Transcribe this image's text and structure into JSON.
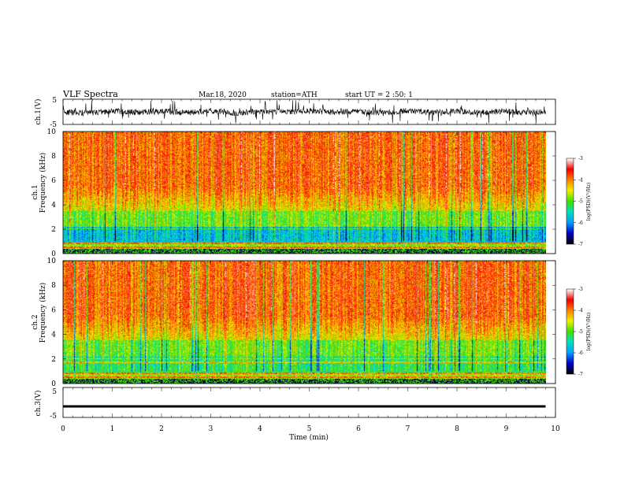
{
  "header": {
    "title": "VLF  Spectra",
    "date": "Mar.18, 2020",
    "station": "station=ATH",
    "start": "start  UT  =   2  :50: 1"
  },
  "chart_data": [
    {
      "type": "line",
      "name": "ch1-waveform",
      "ylabel": "ch.1(V)",
      "ylim": [
        -5,
        5
      ],
      "yticks": [
        "5",
        "-5"
      ],
      "xlim": [
        0,
        10
      ],
      "color": "#000000",
      "x": [
        0,
        0.5,
        1,
        1.5,
        2,
        2.5,
        3,
        3.5,
        4,
        4.5,
        5,
        5.5,
        6,
        6.5,
        7,
        7.5,
        8,
        8.5,
        9,
        9.5,
        9.8
      ],
      "y": [
        0,
        -0.5,
        0.3,
        -0.2,
        0.2,
        -0.3,
        0.4,
        -0.4,
        0.1,
        -0.1,
        0.3,
        -0.2,
        0.2,
        -0.5,
        0.4,
        -0.1,
        0.2,
        -0.3,
        0.1,
        -0.2,
        0
      ]
    },
    {
      "type": "heatmap",
      "name": "ch1-spectrogram",
      "ylabel_top": "ch.1",
      "ylabel": "Frequency  (kHz)",
      "ylim": [
        0,
        10
      ],
      "yticks": [
        "0",
        "2",
        "4",
        "6",
        "8",
        "10"
      ],
      "xlim": [
        0,
        9.8
      ],
      "colorbar": {
        "label": "log(PSD)(V²/Hz)",
        "range": [
          -7,
          -3
        ],
        "ticks": [
          "-3",
          "-4",
          "-5",
          "-6",
          "-7"
        ]
      }
    },
    {
      "type": "heatmap",
      "name": "ch2-spectrogram",
      "ylabel_top": "ch.2",
      "ylabel": "Frequency  (kHz)",
      "ylim": [
        0,
        10
      ],
      "yticks": [
        "0",
        "2",
        "4",
        "6",
        "8",
        "10"
      ],
      "xlim": [
        0,
        9.8
      ],
      "colorbar": {
        "label": "log(PSD)(V²/Hz)",
        "range": [
          -7,
          -3
        ],
        "ticks": [
          "-3",
          "-4",
          "-5",
          "-6",
          "-7"
        ]
      }
    },
    {
      "type": "line",
      "name": "ch3-waveform",
      "ylabel": "ch.3(V)",
      "ylim": [
        -5,
        5
      ],
      "yticks": [
        "5",
        "-5"
      ],
      "xlim": [
        0,
        10
      ],
      "color": "#000000",
      "x": [
        0,
        9.8
      ],
      "y": [
        -1.3,
        -1.3
      ]
    }
  ],
  "xaxis": {
    "label": "Time  (min)",
    "range": [
      0,
      10
    ],
    "ticks": [
      "0",
      "1",
      "2",
      "3",
      "4",
      "5",
      "6",
      "7",
      "8",
      "9",
      "10"
    ]
  },
  "colors": {
    "axis": "#000000",
    "colormap": [
      "#000000",
      "#0000c8",
      "#00a0ff",
      "#00e0c0",
      "#40e000",
      "#f0f000",
      "#ff8000",
      "#f00000",
      "#ffffff"
    ]
  }
}
